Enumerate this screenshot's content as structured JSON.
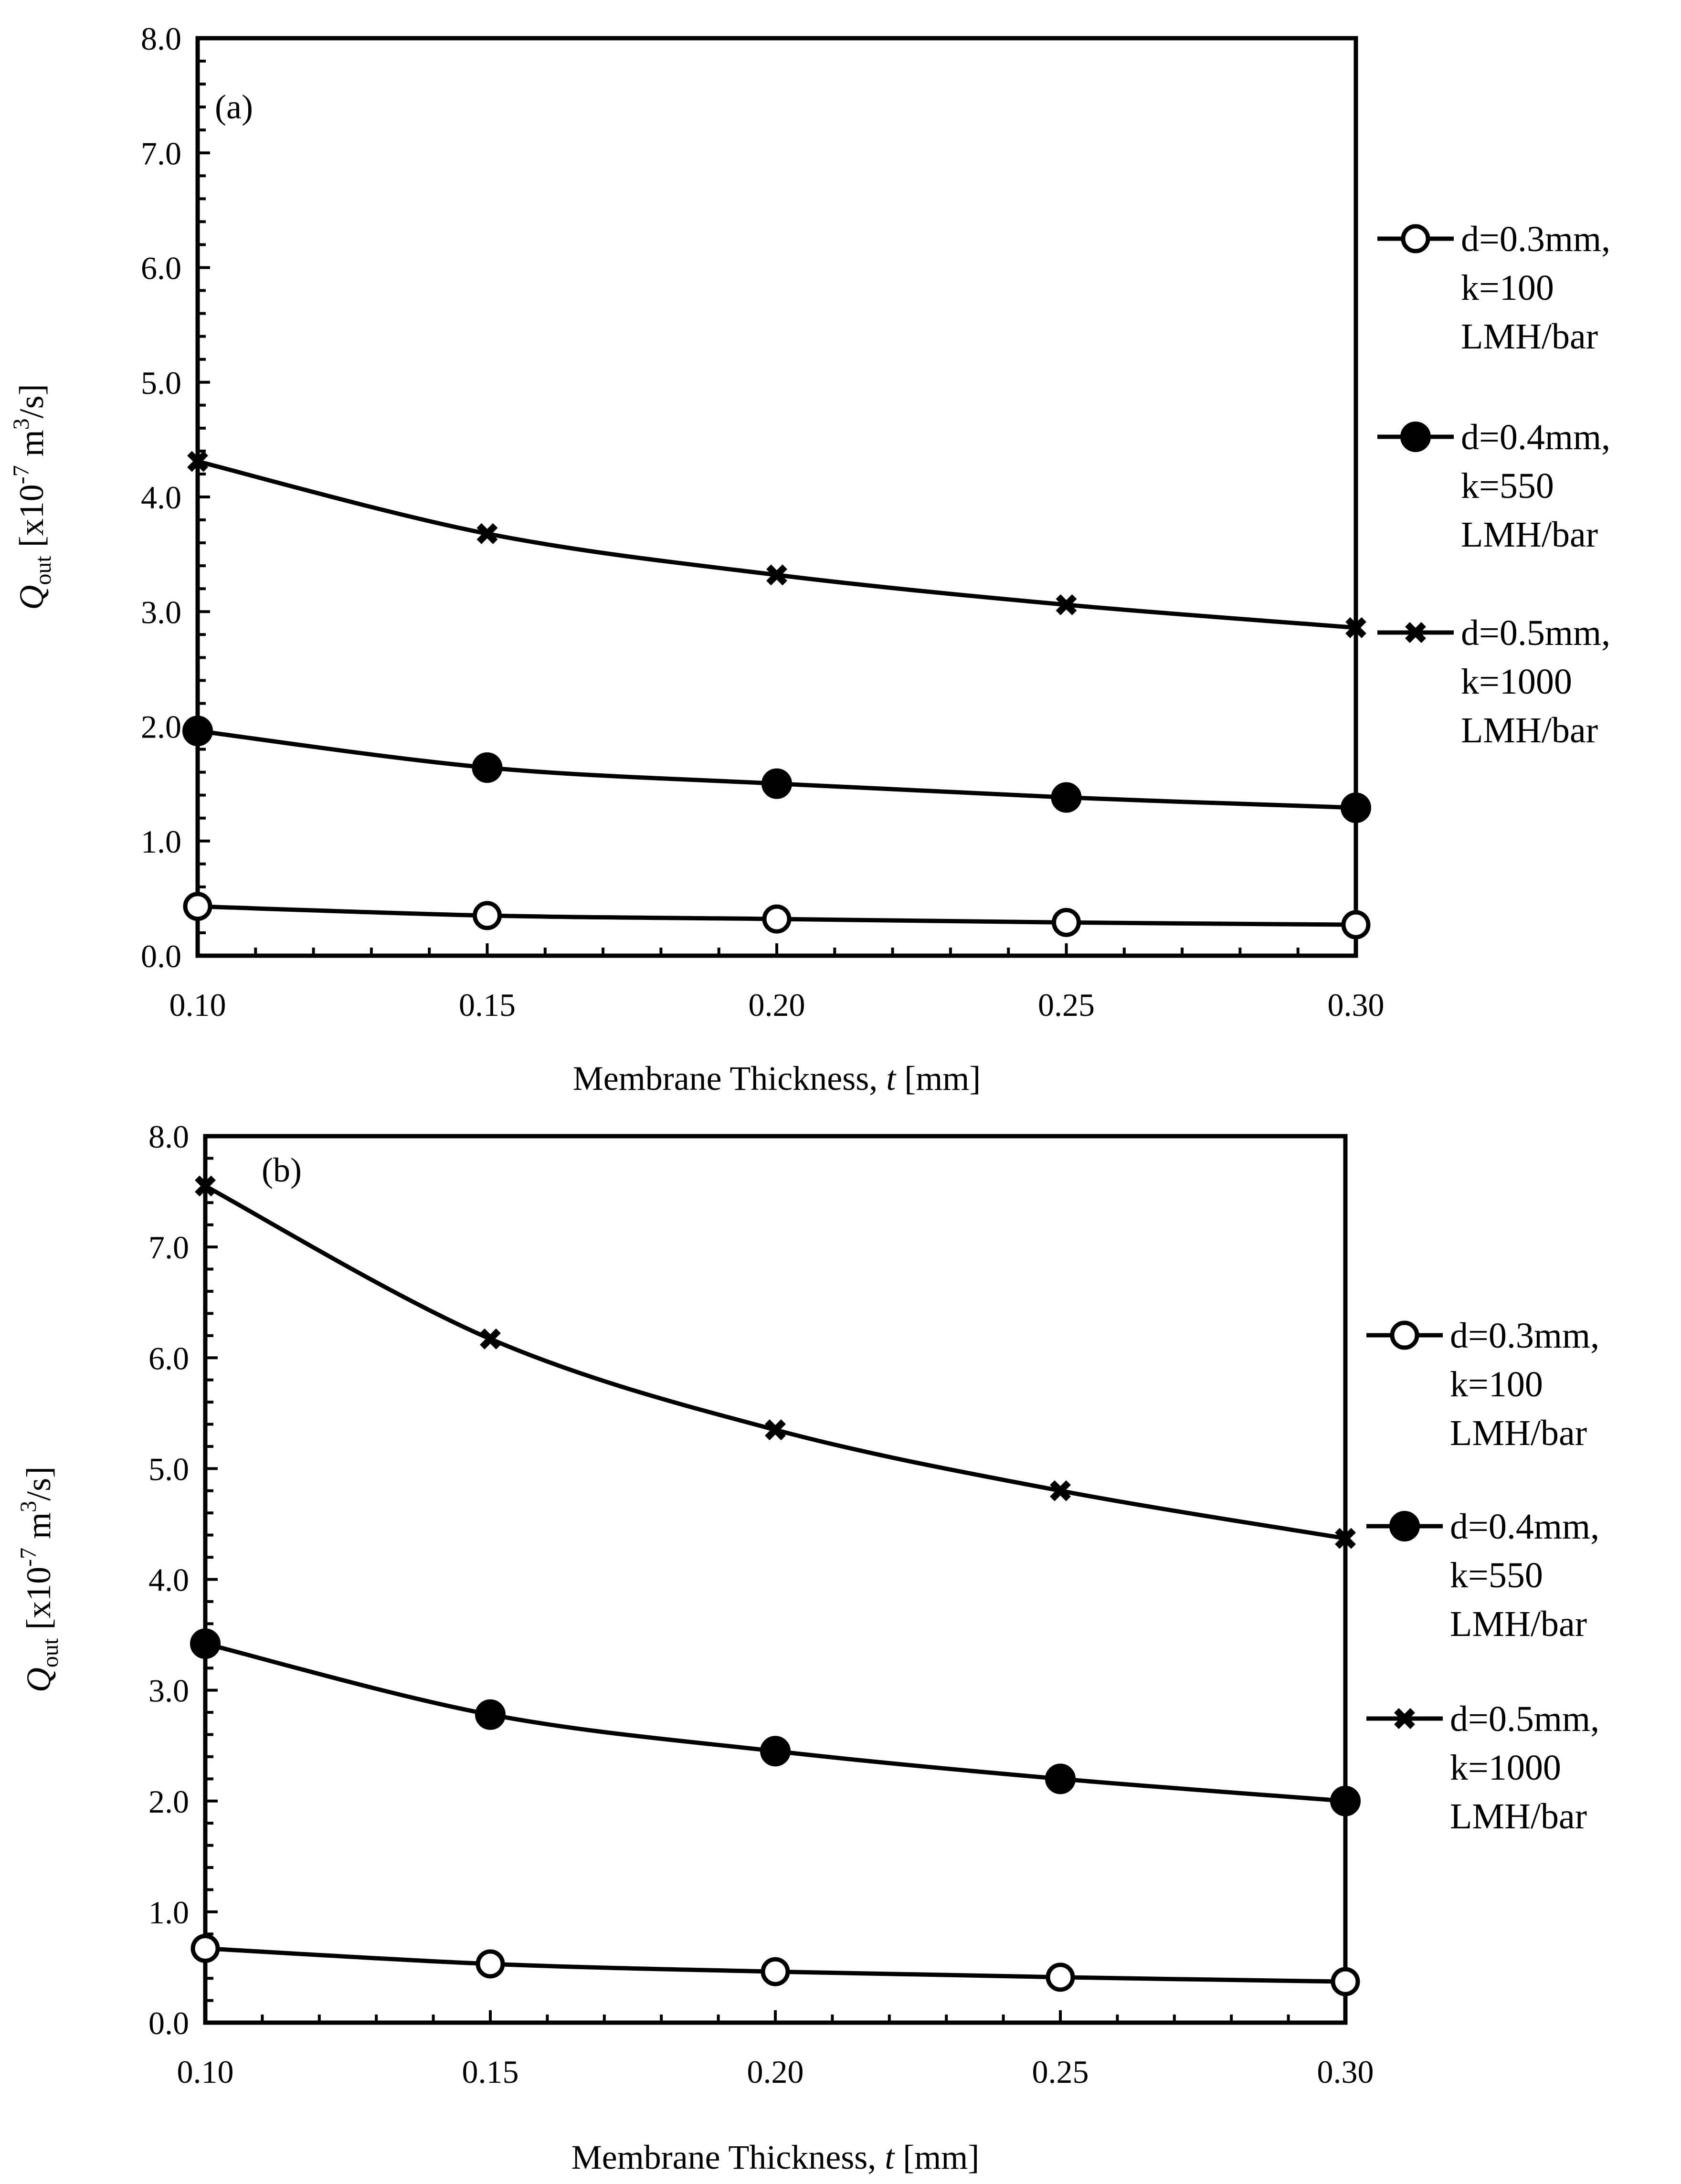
{
  "chart_data": [
    {
      "type": "line",
      "panel_label": "(a)",
      "xlabel": "Membrane Thickness, t [mm]",
      "xlabel_parts": {
        "pre": "Membrane Thickness, ",
        "var": "t",
        "post": " [mm]"
      },
      "ylabel_parts": {
        "var": "Q",
        "sub": "out",
        "pre": " [x10",
        "exp": "-7",
        "mid": " m",
        "exp2": "3",
        "post": "/s]"
      },
      "x_ticks": [
        "0.10",
        "0.15",
        "0.20",
        "0.25",
        "0.30"
      ],
      "y_ticks": [
        "0.0",
        "1.0",
        "2.0",
        "3.0",
        "4.0",
        "5.0",
        "6.0",
        "7.0",
        "8.0"
      ],
      "xlim": [
        0.1,
        0.3
      ],
      "ylim": [
        0,
        8
      ],
      "x": [
        0.1,
        0.15,
        0.2,
        0.25,
        0.3
      ],
      "series": [
        {
          "name": "d=0.3mm, k=100 LMH/bar",
          "legend_lines": [
            "d=0.3mm,",
            "k=100",
            "LMH/bar"
          ],
          "marker": "open-circle",
          "values": [
            0.43,
            0.35,
            0.32,
            0.29,
            0.27
          ]
        },
        {
          "name": "d=0.4mm, k=550 LMH/bar",
          "legend_lines": [
            "d=0.4mm,",
            "k=550",
            "LMH/bar"
          ],
          "marker": "filled-circle",
          "values": [
            1.96,
            1.64,
            1.5,
            1.38,
            1.29
          ]
        },
        {
          "name": "d=0.5mm, k=1000 LMH/bar",
          "legend_lines": [
            "d=0.5mm,",
            "k=1000",
            "LMH/bar"
          ],
          "marker": "x",
          "values": [
            4.31,
            3.68,
            3.32,
            3.06,
            2.86
          ]
        }
      ]
    },
    {
      "type": "line",
      "panel_label": "(b)",
      "xlabel": "Membrane Thickness, t [mm]",
      "xlabel_parts": {
        "pre": "Membrane Thickness, ",
        "var": "t",
        "post": " [mm]"
      },
      "ylabel_parts": {
        "var": "Q",
        "sub": "out",
        "pre": " [x10",
        "exp": "-7",
        "mid": " m",
        "exp2": "3",
        "post": "/s]"
      },
      "x_ticks": [
        "0.10",
        "0.15",
        "0.20",
        "0.25",
        "0.30"
      ],
      "y_ticks": [
        "0.0",
        "1.0",
        "2.0",
        "3.0",
        "4.0",
        "5.0",
        "6.0",
        "7.0",
        "8.0"
      ],
      "xlim": [
        0.1,
        0.3
      ],
      "ylim": [
        0,
        8
      ],
      "x": [
        0.1,
        0.15,
        0.2,
        0.25,
        0.3
      ],
      "series": [
        {
          "name": "d=0.3mm, k=100 LMH/bar",
          "legend_lines": [
            "d=0.3mm,",
            "k=100",
            "LMH/bar"
          ],
          "marker": "open-circle",
          "values": [
            0.67,
            0.53,
            0.46,
            0.41,
            0.37
          ]
        },
        {
          "name": "d=0.4mm, k=550 LMH/bar",
          "legend_lines": [
            "d=0.4mm,",
            "k=550",
            "LMH/bar"
          ],
          "marker": "filled-circle",
          "values": [
            3.42,
            2.78,
            2.45,
            2.2,
            2.0
          ]
        },
        {
          "name": "d=0.5mm, k=1000 LMH/bar",
          "legend_lines": [
            "d=0.5mm,",
            "k=1000",
            "LMH/bar"
          ],
          "marker": "x",
          "values": [
            7.55,
            6.17,
            5.35,
            4.8,
            4.37
          ]
        }
      ]
    }
  ]
}
